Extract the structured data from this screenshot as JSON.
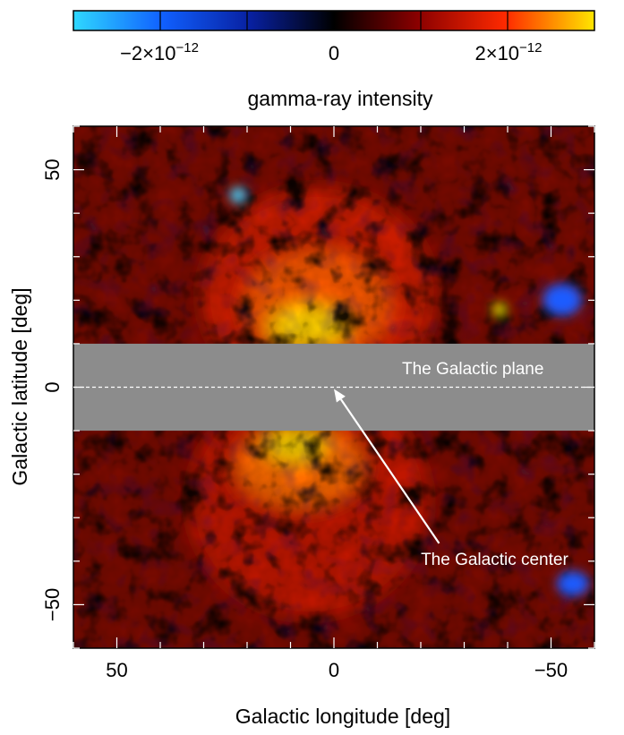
{
  "chart_data": {
    "type": "heatmap",
    "title": "",
    "xlabel": "Galactic longitude [deg]",
    "ylabel": "Galactic latitude [deg]",
    "xlim": [
      60,
      -60
    ],
    "ylim": [
      -60,
      60
    ],
    "x_ticks": [
      50,
      0,
      -50
    ],
    "y_ticks": [
      50,
      0,
      -50
    ],
    "x_tick_labels": [
      "50",
      "0",
      "−50"
    ],
    "y_tick_labels": [
      "50",
      "0",
      "−50"
    ],
    "masked_band": {
      "lat_min": -10,
      "lat max": 10,
      "lat_max": 10,
      "color": "#8c8c8c"
    },
    "colorbar": {
      "label": "gamma-ray intensity",
      "range": [
        -3e-12,
        3e-12
      ],
      "ticks": [
        -2e-12,
        0,
        2e-12
      ],
      "tick_labels": [
        {
          "mantissa": "−2×10",
          "exponent": "−12"
        },
        {
          "mantissa": "0",
          "exponent": ""
        },
        {
          "mantissa": "2×10",
          "exponent": "−12"
        }
      ],
      "colors": [
        "#2fd8ff",
        "#1060ff",
        "#0820a0",
        "#000000",
        "#8a0000",
        "#ff2a00",
        "#ffe600"
      ]
    },
    "features": [
      {
        "name": "northern bubble",
        "lon_range": [
          25,
          -25
        ],
        "lat_range": [
          10,
          50
        ],
        "level": 0.7
      },
      {
        "name": "southern bubble",
        "lon_range": [
          25,
          -25
        ],
        "lat_range": [
          -10,
          -50
        ],
        "level": 0.65
      },
      {
        "name": "blue spot",
        "lon": 22,
        "lat": 45,
        "level": -0.9
      },
      {
        "name": "blue spot",
        "lon": -55,
        "lat": 20,
        "level": -0.7
      },
      {
        "name": "blue spot",
        "lon": -57,
        "lat": -45,
        "level": -0.7
      },
      {
        "name": "yellow spot",
        "lon": -38,
        "lat": 18,
        "level": 0.9
      }
    ],
    "annotations": [
      {
        "text": "The Galactic plane",
        "lon": -32,
        "lat": 3
      },
      {
        "text": "The Galactic center",
        "lon": -37,
        "lat": -40,
        "arrow_to": {
          "lon": 0,
          "lat": 0
        }
      }
    ]
  }
}
